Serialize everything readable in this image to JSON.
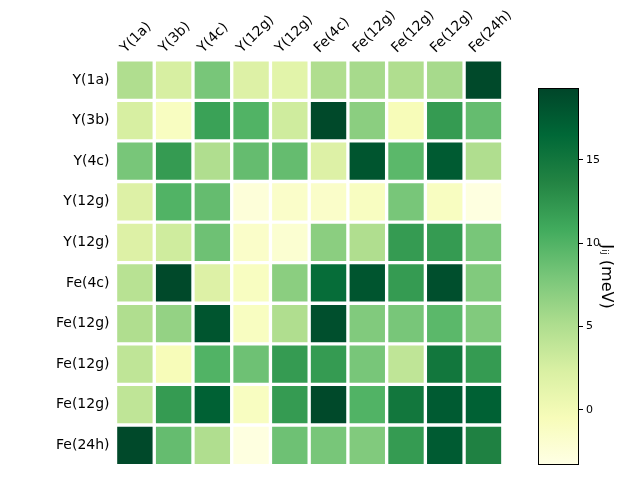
{
  "chart_data": {
    "type": "heatmap",
    "x_categories": [
      "Y(1a)",
      "Y(3b)",
      "Y(4c)",
      "Y(12g)",
      "Y(12g)",
      "Fe(4c)",
      "Fe(12g)",
      "Fe(12g)",
      "Fe(12g)",
      "Fe(24h)"
    ],
    "y_categories": [
      "Y(1a)",
      "Y(3b)",
      "Y(4c)",
      "Y(12g)",
      "Y(12g)",
      "Fe(4c)",
      "Fe(12g)",
      "Fe(12g)",
      "Fe(12g)",
      "Fe(24h)"
    ],
    "values": [
      [
        5,
        2.5,
        8,
        2,
        1.5,
        5,
        5.5,
        5,
        5.5,
        19
      ],
      [
        2.5,
        -1,
        11.5,
        10,
        3,
        19,
        7,
        -0.5,
        12,
        9
      ],
      [
        8,
        12,
        5,
        9,
        9,
        2,
        18,
        9.5,
        17.5,
        5
      ],
      [
        2,
        10,
        9,
        -2.5,
        -1.5,
        -1.5,
        -1,
        8,
        -1,
        -3
      ],
      [
        2,
        3,
        8.5,
        -1.5,
        -2,
        7,
        5,
        12,
        12,
        8
      ],
      [
        4.5,
        19,
        2,
        -1,
        7,
        16,
        18,
        12,
        18.5,
        7.5
      ],
      [
        5,
        6.5,
        18,
        -1,
        5,
        18.5,
        7.5,
        8,
        9.5,
        7.5
      ],
      [
        4,
        -0.5,
        10,
        8.5,
        12,
        12,
        8,
        4,
        15,
        12
      ],
      [
        4,
        12,
        17,
        -1,
        12,
        19,
        10,
        15,
        17.5,
        17
      ],
      [
        19,
        9,
        5,
        -3,
        8.5,
        8,
        7.5,
        12,
        17.5,
        14
      ]
    ],
    "colorbar": {
      "range": [
        -3.3,
        19.3
      ],
      "ticks": [
        0,
        5,
        10,
        15
      ],
      "label": "Jᵢⱼ (meV)"
    },
    "grid": false
  }
}
